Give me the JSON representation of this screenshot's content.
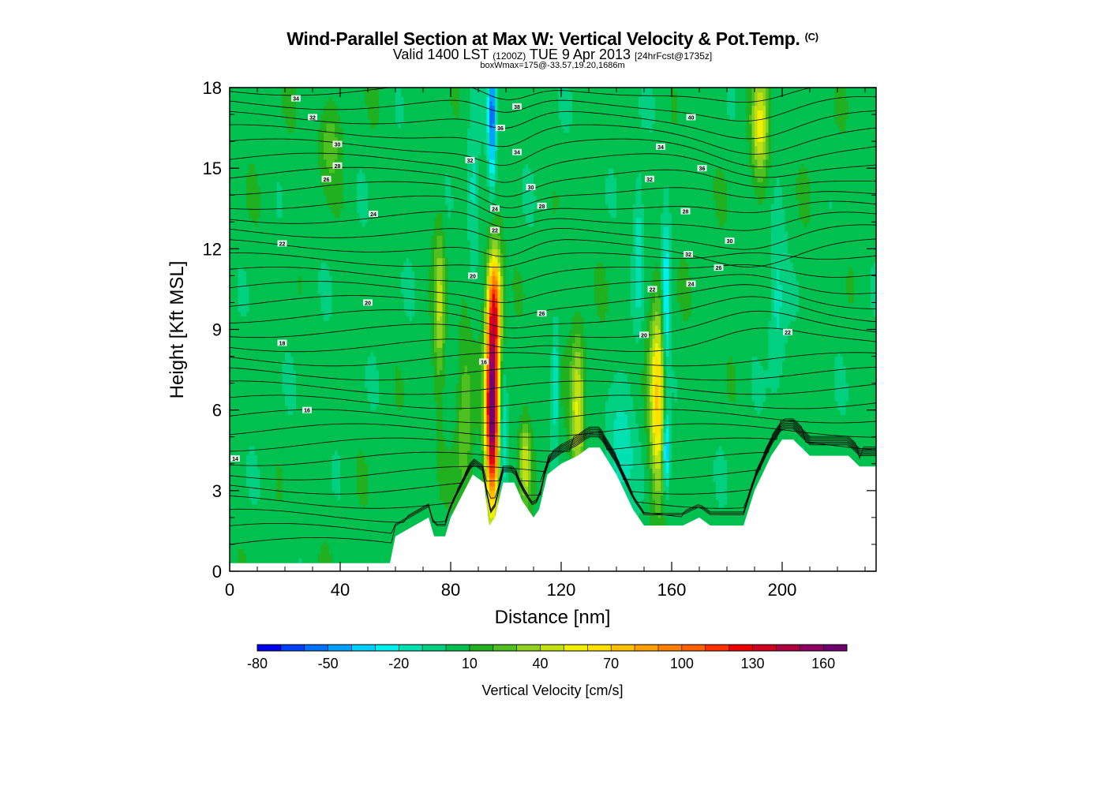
{
  "header": {
    "title": "Wind-Parallel Section at Max W: Vertical Velocity & Pot.Temp.",
    "title_mark": "(C)",
    "subtitle_main": "Valid 1400 LST",
    "subtitle_utc": "(1200Z)",
    "subtitle_date": "TUE 9 Apr 2013",
    "subtitle_fcst": "[24hrFcst@1735z]",
    "info": "boxWmax=175@-33.57,19.20,1686m"
  },
  "chart_data": {
    "type": "heatmap",
    "xlabel": "Distance [nm]",
    "ylabel": "Height [Kft MSL]",
    "xlim": [
      0,
      234
    ],
    "ylim": [
      0,
      18
    ],
    "xticks": [
      "0",
      "40",
      "80",
      "120",
      "160",
      "200"
    ],
    "yticks": [
      "0",
      "3",
      "6",
      "9",
      "12",
      "15",
      "18"
    ],
    "colorbar": {
      "label": "Vertical Velocity [cm/s]",
      "ticks": [
        "-80",
        "-50",
        "-20",
        "10",
        "40",
        "70",
        "100",
        "130",
        "160"
      ],
      "levels": [
        -80,
        -70,
        -60,
        -50,
        -40,
        -30,
        -20,
        -10,
        0,
        10,
        20,
        30,
        40,
        50,
        60,
        70,
        80,
        90,
        100,
        110,
        120,
        130,
        140,
        150,
        160,
        170
      ],
      "colors": [
        "#0000ee",
        "#0040ff",
        "#0070ff",
        "#00a0ff",
        "#00d0ff",
        "#00f0f0",
        "#00e0b0",
        "#00d080",
        "#00c050",
        "#20b020",
        "#50c020",
        "#90d020",
        "#c0e010",
        "#f0f000",
        "#ffe000",
        "#ffc000",
        "#ffa000",
        "#ff8000",
        "#ff6000",
        "#ff3000",
        "#ee0000",
        "#d00020",
        "#b00040",
        "#900060",
        "#700070"
      ]
    },
    "terrain_kft": [
      [
        0,
        0.3
      ],
      [
        58,
        0.3
      ],
      [
        60,
        1.3
      ],
      [
        72,
        2.0
      ],
      [
        74,
        1.3
      ],
      [
        78,
        1.3
      ],
      [
        80,
        2.0
      ],
      [
        88,
        3.6
      ],
      [
        92,
        3.3
      ],
      [
        94,
        1.7
      ],
      [
        96,
        2.0
      ],
      [
        99,
        3.3
      ],
      [
        103,
        3.3
      ],
      [
        106,
        2.6
      ],
      [
        110,
        2.0
      ],
      [
        112,
        2.3
      ],
      [
        115,
        3.6
      ],
      [
        120,
        4.0
      ],
      [
        126,
        4.3
      ],
      [
        130,
        4.6
      ],
      [
        134,
        4.6
      ],
      [
        140,
        3.6
      ],
      [
        146,
        2.3
      ],
      [
        150,
        1.7
      ],
      [
        164,
        1.7
      ],
      [
        170,
        2.0
      ],
      [
        174,
        1.7
      ],
      [
        186,
        1.7
      ],
      [
        190,
        3.0
      ],
      [
        196,
        4.3
      ],
      [
        200,
        4.9
      ],
      [
        204,
        4.9
      ],
      [
        210,
        4.3
      ],
      [
        224,
        4.3
      ],
      [
        228,
        3.9
      ],
      [
        234,
        3.9
      ]
    ],
    "updraft_cores": [
      {
        "x": 95,
        "y_kft": 6.0,
        "w_cms": 170,
        "half_width_nm": 2.3,
        "half_height_kft": 3.5
      },
      {
        "x": 96,
        "y_kft": 10.0,
        "w_cms": 90,
        "half_width_nm": 2.5,
        "half_height_kft": 2.0
      },
      {
        "x": 155,
        "y_kft": 6.5,
        "w_cms": 65,
        "half_width_nm": 2.8,
        "half_height_kft": 3.5
      },
      {
        "x": 126,
        "y_kft": 6.0,
        "w_cms": 45,
        "half_width_nm": 2.5,
        "half_height_kft": 3.0
      },
      {
        "x": 192,
        "y_kft": 16.5,
        "w_cms": 45,
        "half_width_nm": 3.0,
        "half_height_kft": 2.0
      },
      {
        "x": 76,
        "y_kft": 10.0,
        "w_cms": 35,
        "half_width_nm": 2.0,
        "half_height_kft": 3.0
      },
      {
        "x": 107,
        "y_kft": 4.0,
        "w_cms": 40,
        "half_width_nm": 2.0,
        "half_height_kft": 1.5
      },
      {
        "x": 85,
        "y_kft": 5.5,
        "w_cms": 25,
        "half_width_nm": 3.0,
        "half_height_kft": 3.5
      },
      {
        "x": 36,
        "y_kft": 16.0,
        "w_cms": 20,
        "half_width_nm": 4.0,
        "half_height_kft": 1.5
      }
    ],
    "downdraft_cores": [
      {
        "x": 95,
        "y_kft": 17.0,
        "w_cms": -60,
        "half_width_nm": 1.5,
        "half_height_kft": 2.5
      },
      {
        "x": 158,
        "y_kft": 4.5,
        "w_cms": -55,
        "half_width_nm": 1.2,
        "half_height_kft": 1.5
      },
      {
        "x": 158,
        "y_kft": 10.0,
        "w_cms": -40,
        "half_width_nm": 1.5,
        "half_height_kft": 3.0
      },
      {
        "x": 118,
        "y_kft": 7.0,
        "w_cms": -30,
        "half_width_nm": 1.3,
        "half_height_kft": 2.0
      },
      {
        "x": 99,
        "y_kft": 5.0,
        "w_cms": -25,
        "half_width_nm": 1.2,
        "half_height_kft": 2.5
      },
      {
        "x": 141,
        "y_kft": 4.5,
        "w_cms": -25,
        "half_width_nm": 5.0,
        "half_height_kft": 2.0
      },
      {
        "x": 148,
        "y_kft": 12.0,
        "w_cms": -25,
        "half_width_nm": 2.0,
        "half_height_kft": 3.0
      },
      {
        "x": 88,
        "y_kft": 14.0,
        "w_cms": -20,
        "half_width_nm": 2.0,
        "half_height_kft": 3.0
      },
      {
        "x": 198,
        "y_kft": 10.0,
        "w_cms": -20,
        "half_width_nm": 3.0,
        "half_height_kft": 3.0
      }
    ],
    "isentrope_labels": [
      {
        "text": "14",
        "x": 2,
        "y_kft": 4.2
      },
      {
        "text": "16",
        "x": 28,
        "y_kft": 6.0
      },
      {
        "text": "18",
        "x": 19,
        "y_kft": 8.5
      },
      {
        "text": "20",
        "x": 50,
        "y_kft": 10.0
      },
      {
        "text": "22",
        "x": 19,
        "y_kft": 12.2
      },
      {
        "text": "24",
        "x": 52,
        "y_kft": 13.3
      },
      {
        "text": "26",
        "x": 35,
        "y_kft": 14.6
      },
      {
        "text": "28",
        "x": 39,
        "y_kft": 15.1
      },
      {
        "text": "30",
        "x": 39,
        "y_kft": 15.9
      },
      {
        "text": "32",
        "x": 30,
        "y_kft": 16.9
      },
      {
        "text": "34",
        "x": 24,
        "y_kft": 17.6
      },
      {
        "text": "16",
        "x": 92,
        "y_kft": 7.8
      },
      {
        "text": "20",
        "x": 88,
        "y_kft": 11.0
      },
      {
        "text": "22",
        "x": 96,
        "y_kft": 12.7
      },
      {
        "text": "24",
        "x": 96,
        "y_kft": 13.5
      },
      {
        "text": "26",
        "x": 113,
        "y_kft": 9.6
      },
      {
        "text": "28",
        "x": 113,
        "y_kft": 13.6
      },
      {
        "text": "30",
        "x": 109,
        "y_kft": 14.3
      },
      {
        "text": "32",
        "x": 87,
        "y_kft": 15.3
      },
      {
        "text": "34",
        "x": 104,
        "y_kft": 15.6
      },
      {
        "text": "36",
        "x": 98,
        "y_kft": 16.5
      },
      {
        "text": "38",
        "x": 104,
        "y_kft": 17.3
      },
      {
        "text": "20",
        "x": 150,
        "y_kft": 8.8
      },
      {
        "text": "22",
        "x": 153,
        "y_kft": 10.5
      },
      {
        "text": "24",
        "x": 167,
        "y_kft": 10.7
      },
      {
        "text": "26",
        "x": 177,
        "y_kft": 11.3
      },
      {
        "text": "28",
        "x": 165,
        "y_kft": 13.4
      },
      {
        "text": "30",
        "x": 181,
        "y_kft": 12.3
      },
      {
        "text": "32",
        "x": 166,
        "y_kft": 11.8
      },
      {
        "text": "32",
        "x": 152,
        "y_kft": 14.6
      },
      {
        "text": "34",
        "x": 156,
        "y_kft": 15.8
      },
      {
        "text": "36",
        "x": 171,
        "y_kft": 15.0
      },
      {
        "text": "40",
        "x": 167,
        "y_kft": 16.9
      },
      {
        "text": "22",
        "x": 202,
        "y_kft": 8.9
      }
    ]
  }
}
